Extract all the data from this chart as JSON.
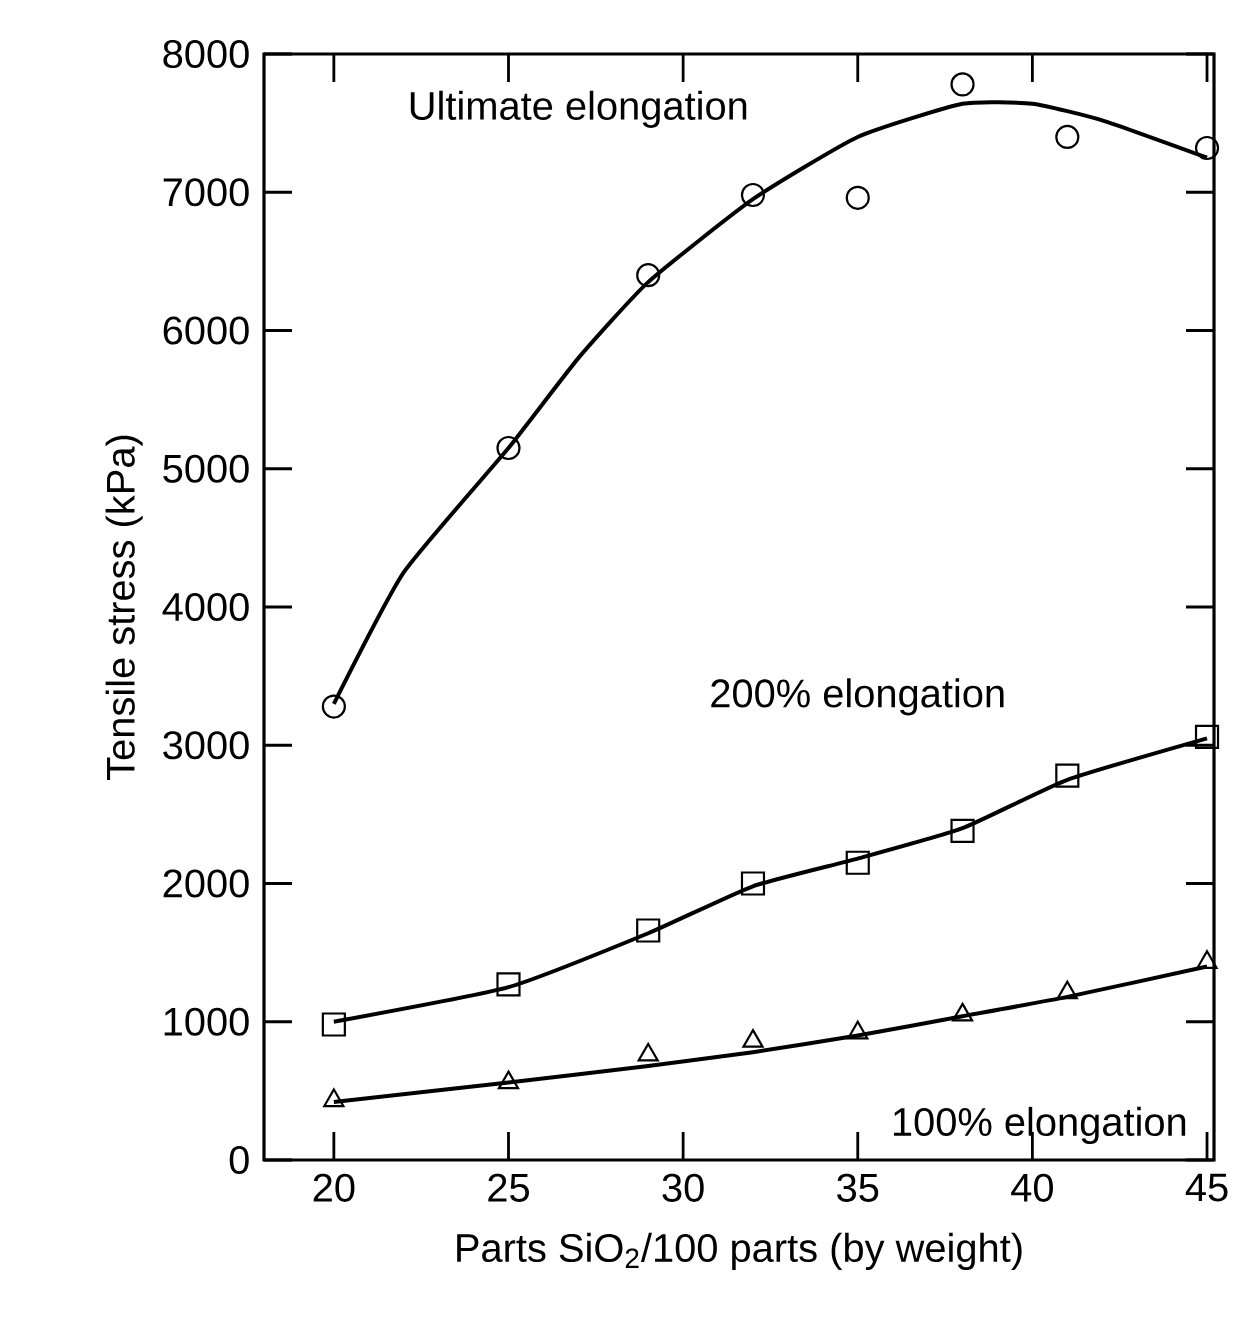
{
  "chart_data": {
    "type": "scatter",
    "xlabel": "Parts SiO$_{2}$/100 parts (by weight)",
    "ylabel": "Tensile stress (kPa)",
    "xlim": [
      18,
      45.2
    ],
    "ylim": [
      0,
      8000
    ],
    "xticks": [
      20,
      25,
      30,
      35,
      40,
      45
    ],
    "yticks": [
      0,
      1000,
      2000,
      3000,
      4000,
      5000,
      6000,
      7000,
      8000
    ],
    "grid": false,
    "series": [
      {
        "marker": "circle",
        "color": "#000000",
        "x": [
          20,
          25,
          29,
          32,
          35,
          38,
          41,
          45
        ],
        "values": [
          3280,
          5150,
          6400,
          6980,
          6960,
          7780,
          7400,
          7320
        ]
      },
      {
        "marker": "square",
        "color": "#000000",
        "x": [
          20,
          25,
          29,
          32,
          35,
          38,
          41,
          45
        ],
        "values": [
          980,
          1270,
          1660,
          2000,
          2150,
          2380,
          2780,
          3060
        ]
      },
      {
        "marker": "triangle",
        "color": "#000000",
        "x": [
          20,
          25,
          29,
          32,
          35,
          38,
          41,
          45
        ],
        "values": [
          430,
          560,
          760,
          860,
          920,
          1050,
          1210,
          1430
        ]
      },
      {
        "type": "line",
        "name": "Ultimate elongation",
        "marker": "none",
        "line_style": "solid",
        "color": "#000000",
        "x": [
          20,
          22,
          25,
          27,
          29,
          32,
          35,
          38,
          40,
          42,
          45
        ],
        "values": [
          3300,
          4250,
          5150,
          5800,
          6350,
          6950,
          7400,
          7640,
          7640,
          7520,
          7250
        ]
      },
      {
        "type": "line",
        "name": "200% elongation",
        "marker": "none",
        "line_style": "solid",
        "color": "#000000",
        "x": [
          20,
          25,
          29,
          32,
          35,
          38,
          41,
          45
        ],
        "values": [
          1000,
          1250,
          1640,
          1980,
          2180,
          2400,
          2750,
          3050
        ]
      },
      {
        "type": "line",
        "name": "100% elongation",
        "marker": "none",
        "line_style": "solid",
        "color": "#000000",
        "x": [
          20,
          25,
          29,
          32,
          35,
          38,
          41,
          45
        ],
        "values": [
          420,
          560,
          680,
          780,
          900,
          1040,
          1180,
          1400
        ]
      }
    ]
  }
}
